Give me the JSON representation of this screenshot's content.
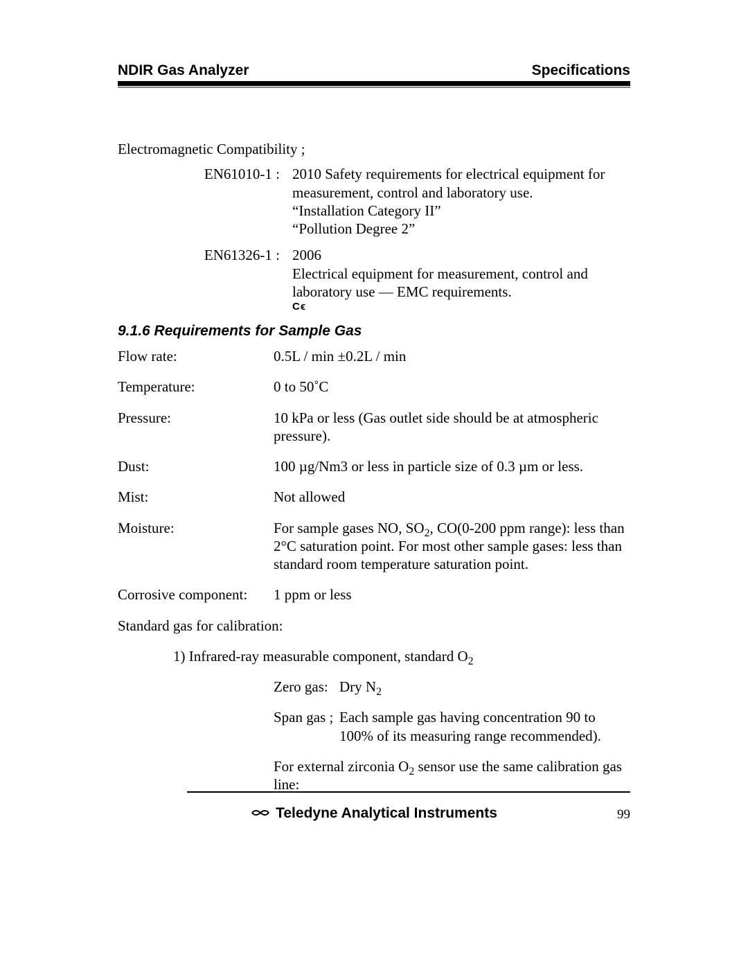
{
  "header": {
    "left": "NDIR Gas Analyzer",
    "right": "Specifications"
  },
  "intro": "Electromagnetic Compatibility ;",
  "standards": [
    {
      "label": "EN61010-1",
      "lines": [
        "2010 Safety requirements for electrical equipment for measurement, control and laboratory use.",
        "“Installation Category II”",
        "“Pollution Degree 2”"
      ],
      "ce": false
    },
    {
      "label": "EN61326-1",
      "lines": [
        "2006",
        "Electrical equipment for measurement, control and laboratory use — EMC requirements."
      ],
      "ce": true
    }
  ],
  "subhead": "9.1.6 Requirements for Sample Gas",
  "specs": {
    "flow": {
      "label": "Flow rate:",
      "value": "0.5L / min ±0.2L / min"
    },
    "temp": {
      "label": "Temperature:",
      "value": "0 to 50˚C"
    },
    "pressure": {
      "label": "Pressure:",
      "value": "10 kPa or less (Gas outlet side should be at atmospheric pressure)."
    },
    "dust": {
      "label": "Dust:",
      "value": "100 µg/Nm3 or less in particle size of 0.3 µm or less."
    },
    "mist": {
      "label": "Mist:",
      "value": "Not allowed"
    },
    "moisture": {
      "label": "Moisture:",
      "value_html": "For sample gases NO, SO<sub>2</sub>, CO(0-200 ppm range): less than 2°C saturation point. For most other sample gases: less than standard room temperature saturation point."
    },
    "corrosive": {
      "label": "Corrosive component:",
      "value": "1 ppm or less"
    }
  },
  "calib_heading": "Standard gas for calibration:",
  "calib_item1_html": "1) Infrared-ray measurable component, standard O<sub>2</sub>",
  "zero_gas": {
    "label": "Zero gas:",
    "value_html": "Dry N<sub>2</sub>"
  },
  "span_gas": {
    "label": "Span gas ;",
    "value": "Each sample gas having concentration 90 to 100% of its measuring range recommended)."
  },
  "zirconia_html": "For external zirconia O<sub>2</sub> sensor use the same calibration gas line:",
  "footer": {
    "brand": "Teledyne Analytical Instruments",
    "page": "99"
  },
  "colors": {
    "text": "#000000",
    "rule_gray": "#808080",
    "bg": "#ffffff"
  },
  "fonts": {
    "body": "Times New Roman",
    "heading": "Arial",
    "body_size_pt": 16,
    "heading_size_pt": 16
  }
}
